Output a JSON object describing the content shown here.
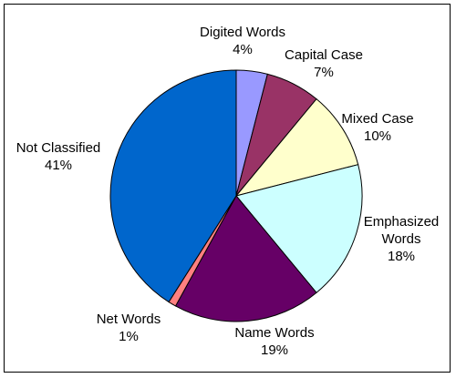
{
  "chart_data": {
    "type": "pie",
    "title": "",
    "start_angle_deg": 0,
    "direction": "clockwise",
    "slices": [
      {
        "label": "Digited Words",
        "percent_label": "4%",
        "value": 4,
        "color": "#9999ff"
      },
      {
        "label": "Capital Case",
        "percent_label": "7%",
        "value": 7,
        "color": "#993366"
      },
      {
        "label": "Mixed Case",
        "percent_label": "10%",
        "value": 10,
        "color": "#ffffcc"
      },
      {
        "label": "Emphasized Words",
        "percent_label": "18%",
        "value": 18,
        "color": "#ccffff"
      },
      {
        "label": "Name Words",
        "percent_label": "19%",
        "value": 19,
        "color": "#660066"
      },
      {
        "label": "Net Words",
        "percent_label": "1%",
        "value": 1,
        "color": "#ff8080"
      },
      {
        "label": "Not Classified",
        "percent_label": "41%",
        "value": 41,
        "color": "#0066cc"
      }
    ]
  }
}
